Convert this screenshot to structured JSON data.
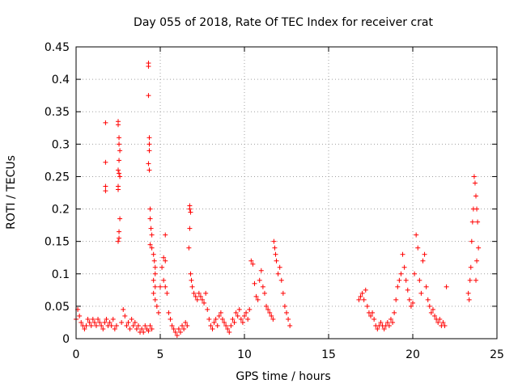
{
  "chart_data": {
    "type": "scatter",
    "title": "Day 055 of 2018, Rate Of TEC Index for receiver crat",
    "xlabel": "GPS time / hours",
    "ylabel": "ROTI / TECUs",
    "xlim": [
      0,
      25
    ],
    "ylim": [
      0,
      0.45
    ],
    "xticks": [
      0,
      5,
      10,
      15,
      20,
      25
    ],
    "xtick_labels": [
      "0",
      "5",
      "10",
      "15",
      "20",
      "25"
    ],
    "yticks": [
      0,
      0.05,
      0.1,
      0.15,
      0.2,
      0.25,
      0.3,
      0.35,
      0.4,
      0.45
    ],
    "ytick_labels": [
      "0",
      "0.05",
      "0.1",
      "0.15",
      "0.2",
      "0.25",
      "0.3",
      "0.35",
      "0.4",
      "0.45"
    ],
    "grid": true,
    "marker": "+",
    "color": "#ff0000",
    "series": [
      {
        "name": "ROTI",
        "points": [
          [
            0.0,
            0.03
          ],
          [
            0.1,
            0.045
          ],
          [
            0.2,
            0.035
          ],
          [
            0.3,
            0.025
          ],
          [
            0.4,
            0.02
          ],
          [
            0.5,
            0.015
          ],
          [
            0.6,
            0.02
          ],
          [
            0.7,
            0.03
          ],
          [
            0.8,
            0.025
          ],
          [
            0.9,
            0.02
          ],
          [
            1.0,
            0.03
          ],
          [
            1.1,
            0.025
          ],
          [
            1.2,
            0.02
          ],
          [
            1.3,
            0.03
          ],
          [
            1.4,
            0.025
          ],
          [
            1.5,
            0.02
          ],
          [
            1.6,
            0.015
          ],
          [
            1.7,
            0.025
          ],
          [
            1.8,
            0.03
          ],
          [
            1.9,
            0.02
          ],
          [
            1.75,
            0.333
          ],
          [
            1.75,
            0.272
          ],
          [
            1.75,
            0.235
          ],
          [
            1.75,
            0.228
          ],
          [
            2.0,
            0.025
          ],
          [
            2.1,
            0.02
          ],
          [
            2.2,
            0.03
          ],
          [
            2.3,
            0.015
          ],
          [
            2.4,
            0.02
          ],
          [
            2.5,
            0.335
          ],
          [
            2.5,
            0.33
          ],
          [
            2.55,
            0.31
          ],
          [
            2.55,
            0.3
          ],
          [
            2.6,
            0.29
          ],
          [
            2.55,
            0.275
          ],
          [
            2.5,
            0.26
          ],
          [
            2.55,
            0.255
          ],
          [
            2.6,
            0.25
          ],
          [
            2.5,
            0.235
          ],
          [
            2.5,
            0.23
          ],
          [
            2.6,
            0.185
          ],
          [
            2.55,
            0.165
          ],
          [
            2.5,
            0.15
          ],
          [
            2.55,
            0.155
          ],
          [
            2.7,
            0.025
          ],
          [
            2.8,
            0.045
          ],
          [
            2.9,
            0.035
          ],
          [
            3.0,
            0.02
          ],
          [
            3.1,
            0.025
          ],
          [
            3.2,
            0.015
          ],
          [
            3.3,
            0.03
          ],
          [
            3.4,
            0.02
          ],
          [
            3.5,
            0.025
          ],
          [
            3.6,
            0.015
          ],
          [
            3.7,
            0.02
          ],
          [
            3.8,
            0.01
          ],
          [
            3.9,
            0.015
          ],
          [
            4.0,
            0.01
          ],
          [
            4.1,
            0.02
          ],
          [
            4.2,
            0.015
          ],
          [
            4.3,
            0.012
          ],
          [
            4.4,
            0.02
          ],
          [
            4.5,
            0.015
          ],
          [
            4.3,
            0.425
          ],
          [
            4.3,
            0.42
          ],
          [
            4.3,
            0.375
          ],
          [
            4.35,
            0.31
          ],
          [
            4.35,
            0.3
          ],
          [
            4.35,
            0.29
          ],
          [
            4.3,
            0.27
          ],
          [
            4.35,
            0.26
          ],
          [
            4.4,
            0.2
          ],
          [
            4.4,
            0.185
          ],
          [
            4.45,
            0.17
          ],
          [
            4.5,
            0.16
          ],
          [
            4.4,
            0.145
          ],
          [
            4.5,
            0.14
          ],
          [
            4.6,
            0.13
          ],
          [
            4.65,
            0.12
          ],
          [
            4.7,
            0.11
          ],
          [
            4.7,
            0.1
          ],
          [
            4.6,
            0.09
          ],
          [
            4.7,
            0.08
          ],
          [
            4.6,
            0.07
          ],
          [
            4.7,
            0.06
          ],
          [
            4.8,
            0.05
          ],
          [
            4.9,
            0.04
          ],
          [
            5.0,
            0.08
          ],
          [
            5.1,
            0.11
          ],
          [
            5.2,
            0.125
          ],
          [
            5.3,
            0.16
          ],
          [
            5.3,
            0.12
          ],
          [
            5.2,
            0.09
          ],
          [
            5.3,
            0.08
          ],
          [
            5.4,
            0.07
          ],
          [
            5.5,
            0.04
          ],
          [
            5.6,
            0.03
          ],
          [
            5.7,
            0.02
          ],
          [
            5.8,
            0.015
          ],
          [
            5.9,
            0.01
          ],
          [
            6.0,
            0.005
          ],
          [
            6.1,
            0.015
          ],
          [
            6.2,
            0.01
          ],
          [
            6.3,
            0.02
          ],
          [
            6.4,
            0.015
          ],
          [
            6.5,
            0.025
          ],
          [
            6.6,
            0.02
          ],
          [
            6.75,
            0.205
          ],
          [
            6.75,
            0.2
          ],
          [
            6.8,
            0.195
          ],
          [
            6.75,
            0.17
          ],
          [
            6.7,
            0.14
          ],
          [
            6.8,
            0.1
          ],
          [
            6.85,
            0.09
          ],
          [
            6.9,
            0.08
          ],
          [
            7.0,
            0.07
          ],
          [
            7.1,
            0.065
          ],
          [
            7.2,
            0.06
          ],
          [
            7.3,
            0.07
          ],
          [
            7.4,
            0.065
          ],
          [
            7.5,
            0.06
          ],
          [
            7.6,
            0.055
          ],
          [
            7.7,
            0.07
          ],
          [
            7.8,
            0.045
          ],
          [
            7.9,
            0.03
          ],
          [
            8.0,
            0.02
          ],
          [
            8.1,
            0.015
          ],
          [
            8.2,
            0.025
          ],
          [
            8.3,
            0.03
          ],
          [
            8.4,
            0.02
          ],
          [
            8.5,
            0.035
          ],
          [
            8.6,
            0.04
          ],
          [
            8.7,
            0.03
          ],
          [
            8.8,
            0.025
          ],
          [
            8.9,
            0.02
          ],
          [
            9.0,
            0.015
          ],
          [
            9.1,
            0.01
          ],
          [
            9.2,
            0.02
          ],
          [
            9.3,
            0.03
          ],
          [
            9.4,
            0.025
          ],
          [
            9.5,
            0.04
          ],
          [
            9.6,
            0.035
          ],
          [
            9.7,
            0.045
          ],
          [
            9.8,
            0.03
          ],
          [
            9.9,
            0.025
          ],
          [
            10.0,
            0.035
          ],
          [
            10.1,
            0.04
          ],
          [
            10.2,
            0.03
          ],
          [
            10.3,
            0.045
          ],
          [
            10.4,
            0.12
          ],
          [
            10.5,
            0.115
          ],
          [
            10.6,
            0.085
          ],
          [
            10.7,
            0.065
          ],
          [
            10.8,
            0.06
          ],
          [
            10.9,
            0.09
          ],
          [
            11.0,
            0.105
          ],
          [
            11.1,
            0.08
          ],
          [
            11.2,
            0.07
          ],
          [
            11.3,
            0.05
          ],
          [
            11.4,
            0.045
          ],
          [
            11.5,
            0.04
          ],
          [
            11.6,
            0.035
          ],
          [
            11.7,
            0.03
          ],
          [
            11.75,
            0.15
          ],
          [
            11.8,
            0.14
          ],
          [
            11.85,
            0.13
          ],
          [
            11.9,
            0.12
          ],
          [
            12.0,
            0.1
          ],
          [
            12.1,
            0.11
          ],
          [
            12.2,
            0.09
          ],
          [
            12.3,
            0.07
          ],
          [
            12.4,
            0.05
          ],
          [
            12.5,
            0.04
          ],
          [
            12.6,
            0.03
          ],
          [
            12.7,
            0.02
          ],
          [
            16.8,
            0.06
          ],
          [
            16.9,
            0.065
          ],
          [
            17.0,
            0.07
          ],
          [
            17.1,
            0.06
          ],
          [
            17.2,
            0.075
          ],
          [
            17.3,
            0.05
          ],
          [
            17.4,
            0.04
          ],
          [
            17.5,
            0.035
          ],
          [
            17.6,
            0.04
          ],
          [
            17.7,
            0.03
          ],
          [
            17.8,
            0.02
          ],
          [
            17.9,
            0.015
          ],
          [
            18.0,
            0.02
          ],
          [
            18.1,
            0.025
          ],
          [
            18.2,
            0.02
          ],
          [
            18.3,
            0.015
          ],
          [
            18.4,
            0.02
          ],
          [
            18.5,
            0.025
          ],
          [
            18.6,
            0.02
          ],
          [
            18.7,
            0.03
          ],
          [
            18.8,
            0.025
          ],
          [
            18.9,
            0.04
          ],
          [
            19.0,
            0.06
          ],
          [
            19.1,
            0.08
          ],
          [
            19.2,
            0.09
          ],
          [
            19.3,
            0.1
          ],
          [
            19.4,
            0.13
          ],
          [
            19.5,
            0.11
          ],
          [
            19.6,
            0.09
          ],
          [
            19.7,
            0.075
          ],
          [
            19.8,
            0.06
          ],
          [
            19.9,
            0.05
          ],
          [
            20.0,
            0.055
          ],
          [
            20.1,
            0.1
          ],
          [
            20.2,
            0.16
          ],
          [
            20.3,
            0.14
          ],
          [
            20.4,
            0.09
          ],
          [
            20.5,
            0.07
          ],
          [
            20.6,
            0.12
          ],
          [
            20.7,
            0.13
          ],
          [
            20.8,
            0.08
          ],
          [
            20.9,
            0.06
          ],
          [
            21.0,
            0.05
          ],
          [
            21.1,
            0.04
          ],
          [
            21.2,
            0.045
          ],
          [
            21.3,
            0.035
          ],
          [
            21.4,
            0.03
          ],
          [
            21.5,
            0.025
          ],
          [
            21.6,
            0.03
          ],
          [
            21.7,
            0.02
          ],
          [
            21.8,
            0.025
          ],
          [
            21.9,
            0.02
          ],
          [
            22.0,
            0.08
          ],
          [
            23.3,
            0.07
          ],
          [
            23.35,
            0.06
          ],
          [
            23.4,
            0.09
          ],
          [
            23.45,
            0.11
          ],
          [
            23.5,
            0.15
          ],
          [
            23.55,
            0.18
          ],
          [
            23.6,
            0.2
          ],
          [
            23.65,
            0.25
          ],
          [
            23.7,
            0.24
          ],
          [
            23.75,
            0.22
          ],
          [
            23.8,
            0.2
          ],
          [
            23.85,
            0.18
          ],
          [
            23.9,
            0.14
          ],
          [
            23.8,
            0.12
          ],
          [
            23.75,
            0.09
          ]
        ]
      }
    ]
  }
}
